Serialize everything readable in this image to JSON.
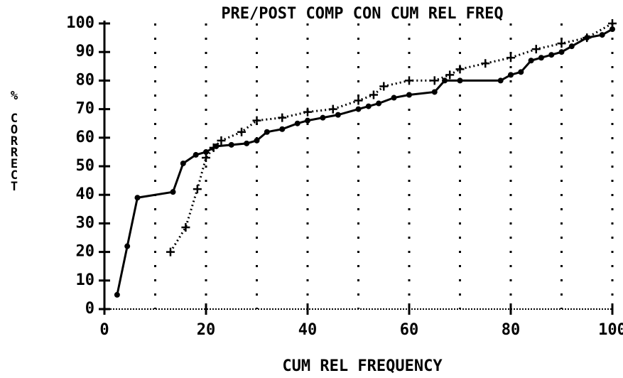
{
  "chart_data": {
    "type": "line",
    "title": "PRE/POST COMP CON CUM REL FREQ",
    "xlabel": "CUM REL FREQUENCY",
    "ylabel": "% CORRECT",
    "xlim": [
      0,
      100
    ],
    "xticks": [
      0,
      20,
      40,
      60,
      80,
      100
    ],
    "ylim": [
      0,
      100
    ],
    "yticks": [
      0,
      10,
      20,
      30,
      40,
      50,
      60,
      70,
      80,
      90,
      100
    ],
    "grid_x": [
      10,
      20,
      30,
      40,
      50,
      60,
      70,
      80,
      90,
      100
    ],
    "color": "#000000",
    "series": [
      {
        "style": "solid",
        "marker": "circle",
        "x": [
          2.5,
          4.5,
          6.5,
          13.5,
          15.5,
          18,
          20,
          22,
          25,
          28,
          30,
          32,
          35,
          38,
          40,
          43,
          46,
          50,
          52,
          54,
          57,
          60,
          65,
          67,
          70,
          78,
          80,
          82,
          84,
          86,
          88,
          90,
          92,
          95,
          98,
          100
        ],
        "values": [
          5,
          22,
          39,
          41,
          51,
          54,
          55,
          57,
          57.5,
          58,
          59,
          62,
          63,
          65,
          66,
          67,
          68,
          70,
          71,
          72,
          74,
          75,
          76,
          80,
          80,
          80,
          82,
          83,
          87,
          88,
          89,
          90,
          92,
          95,
          96,
          98
        ]
      },
      {
        "style": "dotted",
        "marker": "plus",
        "x": [
          13,
          16,
          18.3,
          20,
          21.5,
          23,
          27,
          30,
          35,
          40,
          45,
          50,
          53,
          55,
          60,
          65,
          68,
          70,
          75,
          80,
          85,
          90,
          95,
          100
        ],
        "values": [
          20,
          28.6,
          42,
          53,
          56.5,
          59,
          62,
          66,
          67,
          69,
          70,
          73,
          75,
          78,
          80,
          80,
          82,
          84,
          86,
          88,
          91,
          93,
          95,
          100
        ]
      }
    ]
  }
}
